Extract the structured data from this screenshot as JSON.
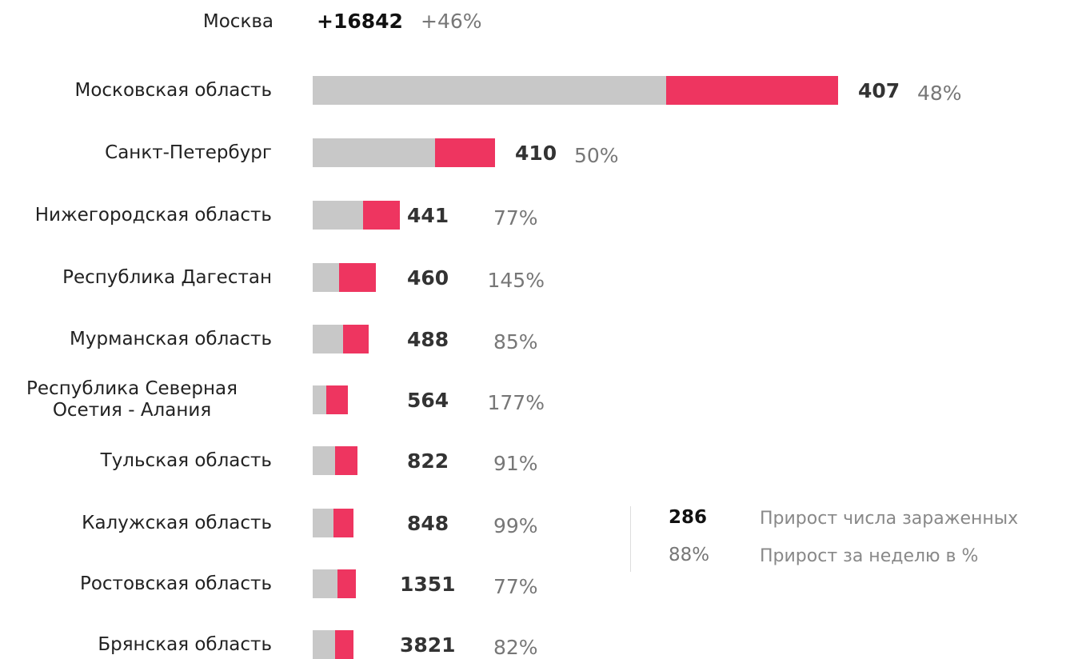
{
  "chart_data": {
    "type": "bar",
    "header": {
      "label": "Москва",
      "count": 16842,
      "count_label": "+16842",
      "pct": 46,
      "pct_label": "+46%"
    },
    "categories": [
      "Московская область",
      "Санкт-Петербург",
      "Нижегородская область",
      "Республика Дагестан",
      "Мурманская область",
      "Республика Северная Осетия - Алания",
      "Тульская область",
      "Калужская область",
      "Ростовская область",
      "Брянская область"
    ],
    "series": [
      {
        "color": "#c8c8c8",
        "values": [
          442,
          153,
          63,
          33,
          38,
          17,
          28,
          26,
          31,
          28
        ]
      },
      {
        "color": "#ee3560",
        "values": [
          215,
          75,
          46,
          46,
          32,
          27,
          28,
          25,
          23,
          23
        ]
      }
    ],
    "counts": [
      407,
      410,
      441,
      460,
      488,
      564,
      822,
      848,
      1351,
      3821
    ],
    "pcts": [
      48,
      50,
      77,
      145,
      85,
      177,
      91,
      99,
      77,
      82
    ],
    "pct_labels": [
      "48%",
      "50%",
      "77%",
      "145%",
      "85%",
      "177%",
      "91%",
      "99%",
      "77%",
      "82%"
    ],
    "legend": {
      "count": 286,
      "count_text": "Прирост числа зараженных",
      "pct": 88,
      "pct_label": "88%",
      "pct_text": "Прирост за неделю в %"
    }
  }
}
